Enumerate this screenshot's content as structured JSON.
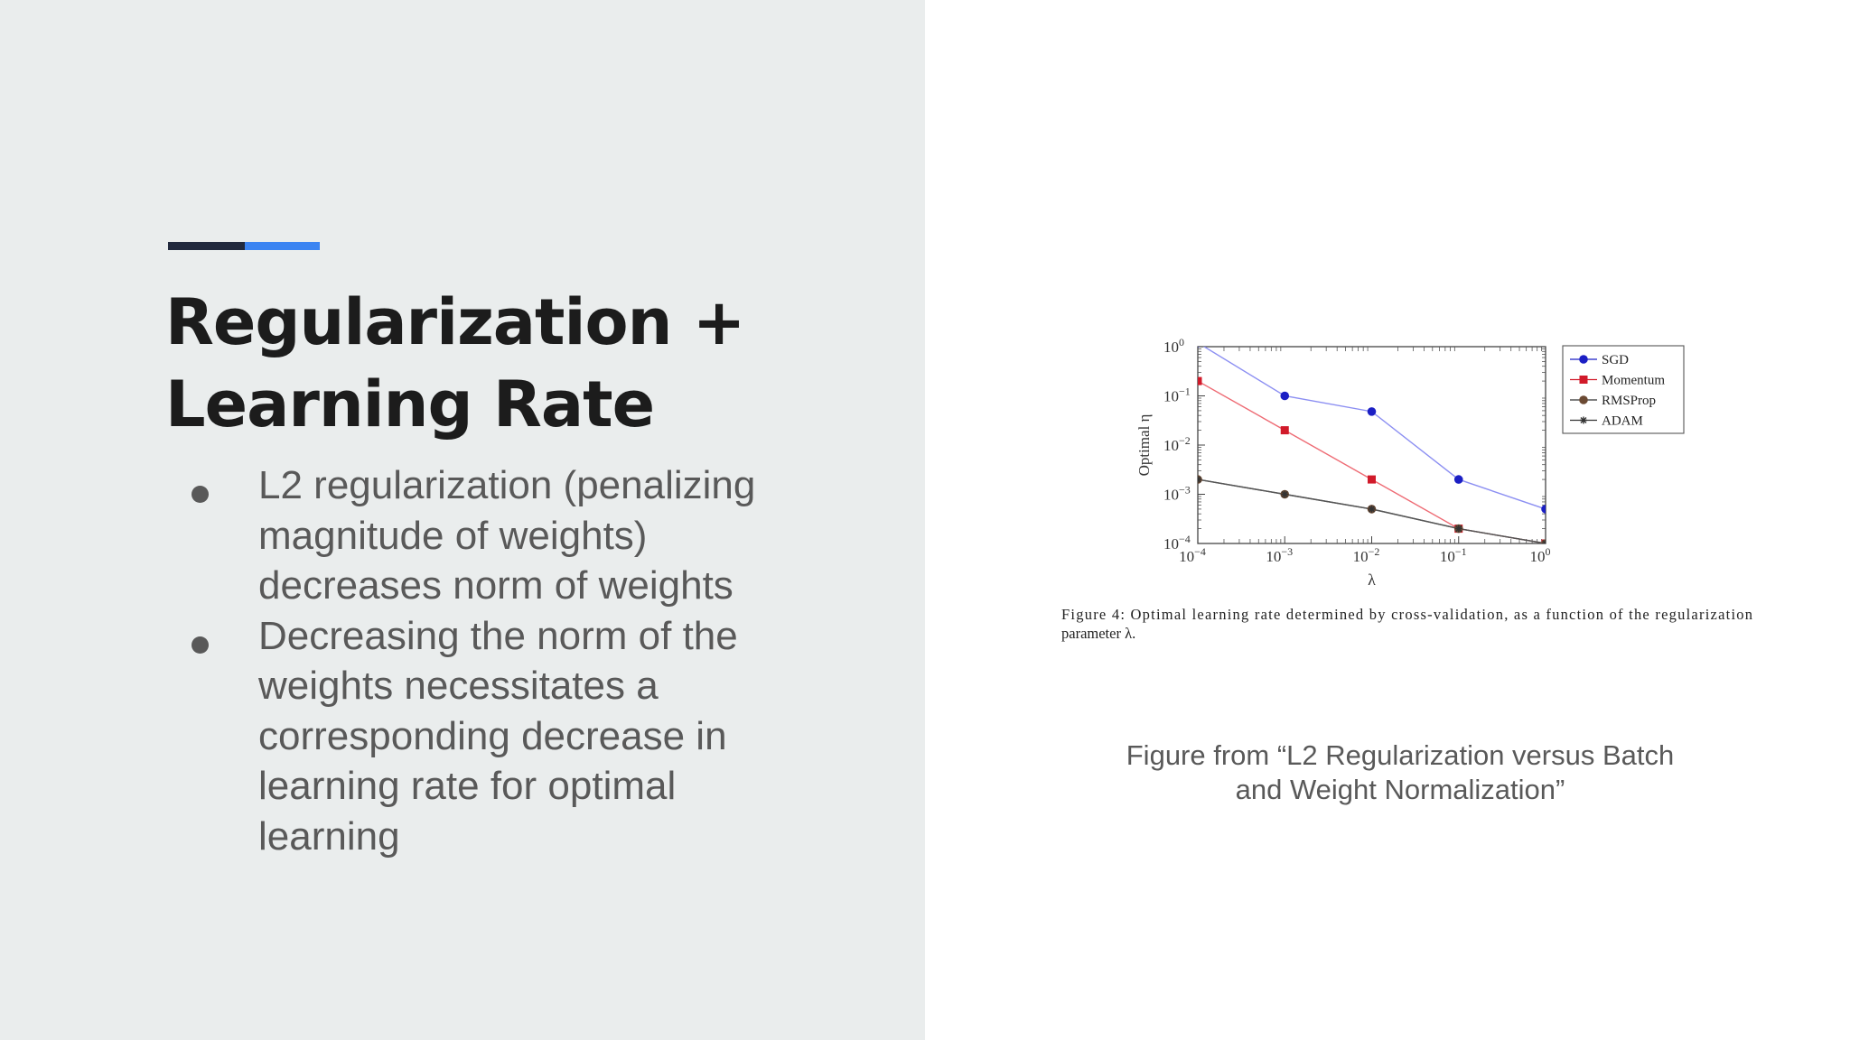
{
  "slide": {
    "title_lines": [
      "Regularization +",
      "Learning Rate"
    ],
    "bullets": [
      "L2 regularization (penalizing magnitude of weights) decreases norm of weights",
      "Decreasing the norm of the weights necessitates a corresponding decrease in learning rate for optimal learning"
    ],
    "source_caption_lines": [
      "Figure from “L2 Regularization versus Batch",
      "and Weight Normalization”"
    ],
    "colors": {
      "left_panel": "#eaeded",
      "accent_dark": "#222a3e",
      "accent_blue": "#3b84f2"
    }
  },
  "figure": {
    "caption_lines": [
      "Figure 4:  Optimal learning rate determined by cross-validation, as a function of the regularization",
      "parameter λ."
    ]
  },
  "chart_data": {
    "type": "line",
    "xlabel": "λ",
    "ylabel": "Optimal η",
    "x_scale": "log",
    "y_scale": "log",
    "xlim": [
      0.0001,
      1
    ],
    "ylim": [
      0.0001,
      1
    ],
    "x": [
      0.0001,
      0.001,
      0.01,
      0.1,
      1
    ],
    "x_tick_labels": [
      [
        "10",
        "−4"
      ],
      [
        "10",
        "−3"
      ],
      [
        "10",
        "−2"
      ],
      [
        "10",
        "−1"
      ],
      [
        "10",
        "0"
      ]
    ],
    "y_tick_labels": [
      [
        "10",
        "0"
      ],
      [
        "10",
        "−1"
      ],
      [
        "10",
        "−2"
      ],
      [
        "10",
        "−3"
      ],
      [
        "10",
        "−4"
      ]
    ],
    "legend_position": "right",
    "series": [
      {
        "name": "SGD",
        "color": "#1b1fc4",
        "line_color": "#8c8ff2",
        "marker": "circle",
        "values": [
          1.2,
          0.1,
          0.048,
          0.002,
          0.0005
        ]
      },
      {
        "name": "Momentum",
        "color": "#d11a2a",
        "line_color": "#ee6b74",
        "marker": "square",
        "values": [
          0.2,
          0.02,
          0.002,
          0.0002,
          0.0001
        ]
      },
      {
        "name": "RMSProp",
        "color": "#6b4a33",
        "line_color": "#555555",
        "marker": "circle",
        "values": [
          0.002,
          0.001,
          0.0005,
          0.0002,
          0.0001
        ]
      },
      {
        "name": "ADAM",
        "color": "#333333",
        "line_color": "#555555",
        "marker": "star",
        "values": [
          0.002,
          0.001,
          0.0005,
          0.0002,
          0.0001
        ]
      }
    ]
  }
}
